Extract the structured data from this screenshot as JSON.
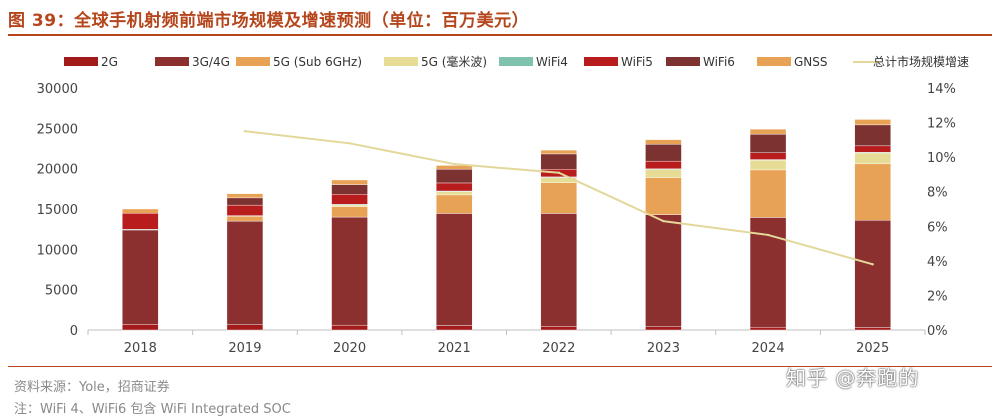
{
  "title": "图 39：全球手机射频前端市场规模及增速预测（单位：百万美元）",
  "source": "资料来源：Yole，招商证券",
  "note": "注：WiFi 4、WiFi6 包含 WiFi Integrated SOC",
  "watermark": "知乎 @奔跑的",
  "colors": {
    "2G": "#a31a1a",
    "3G/4G": "#8b2f2f",
    "5G (Sub 6GHz)": "#e8a256",
    "5G (毫米波)": "#e6dc96",
    "WiFi4": "#7fc3ae",
    "WiFi5": "#b81c1c",
    "WiFi6": "#7d3232",
    "GNSS": "#e8a256",
    "line": "#e3d79a",
    "accent": "#b5451b"
  },
  "chart_data": {
    "type": "bar",
    "stacked": true,
    "title": "全球手机射频前端市场规模及增速预测（单位：百万美元）",
    "categories": [
      "2018",
      "2019",
      "2020",
      "2021",
      "2022",
      "2023",
      "2024",
      "2025"
    ],
    "y_left": {
      "lim": [
        0,
        30000
      ],
      "ticks": [
        "0",
        "5000",
        "10000",
        "15000",
        "20000",
        "25000",
        "30000"
      ]
    },
    "y_right": {
      "lim": [
        0,
        14
      ],
      "ticks": [
        "0%",
        "2%",
        "4%",
        "6%",
        "8%",
        "10%",
        "12%",
        "14%"
      ]
    },
    "legend_position": "top",
    "series": [
      {
        "name": "2G",
        "values": [
          700,
          650,
          600,
          550,
          450,
          400,
          350,
          300
        ]
      },
      {
        "name": "3G/4G",
        "values": [
          11700,
          12850,
          13400,
          13900,
          14000,
          13900,
          13600,
          13300
        ]
      },
      {
        "name": "5G (Sub 6GHz)",
        "values": [
          0,
          600,
          1300,
          2300,
          3800,
          4600,
          5900,
          7000
        ]
      },
      {
        "name": "5G (毫米波)",
        "values": [
          0,
          0,
          200,
          400,
          650,
          1000,
          1200,
          1350
        ]
      },
      {
        "name": "WiFi4",
        "values": [
          80,
          80,
          80,
          80,
          80,
          80,
          80,
          80
        ]
      },
      {
        "name": "WiFi5",
        "values": [
          2000,
          1300,
          1250,
          1000,
          950,
          950,
          850,
          800
        ]
      },
      {
        "name": "WiFi6",
        "values": [
          0,
          900,
          1200,
          1700,
          1900,
          2100,
          2300,
          2600
        ]
      },
      {
        "name": "GNSS",
        "values": [
          520,
          520,
          570,
          470,
          470,
          570,
          620,
          670
        ]
      }
    ],
    "line": {
      "name": "总计市场规模增速",
      "axis": "right",
      "values": [
        null,
        11.5,
        10.8,
        9.6,
        9.1,
        6.3,
        5.5,
        3.8
      ]
    }
  }
}
